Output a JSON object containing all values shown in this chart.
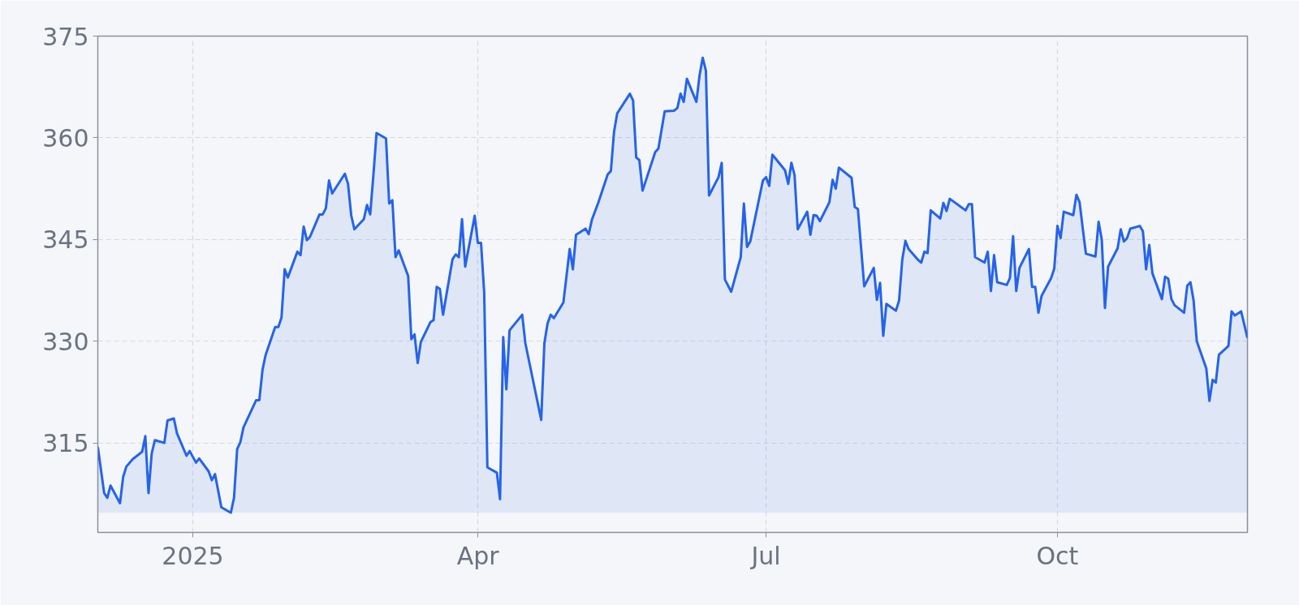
{
  "chart_data": {
    "type": "area",
    "x": [
      "2024-12-02",
      "2024-12-04",
      "2024-12-05",
      "2024-12-06",
      "2024-12-09",
      "2024-12-10",
      "2024-12-11",
      "2024-12-13",
      "2024-12-16",
      "2024-12-17",
      "2024-12-18",
      "2024-12-19",
      "2024-12-20",
      "2024-12-23",
      "2024-12-24",
      "2024-12-26",
      "2024-12-27",
      "2024-12-30",
      "2024-12-31",
      "2025-01-02",
      "2025-01-03",
      "2025-01-06",
      "2025-01-07",
      "2025-01-08",
      "2025-01-10",
      "2025-01-13",
      "2025-01-14",
      "2025-01-15",
      "2025-01-16",
      "2025-01-17",
      "2025-01-21",
      "2025-01-22",
      "2025-01-23",
      "2025-01-24",
      "2025-01-27",
      "2025-01-28",
      "2025-01-29",
      "2025-01-30",
      "2025-01-31",
      "2025-02-03",
      "2025-02-04",
      "2025-02-05",
      "2025-02-06",
      "2025-02-07",
      "2025-02-10",
      "2025-02-11",
      "2025-02-12",
      "2025-02-13",
      "2025-02-14",
      "2025-02-18",
      "2025-02-19",
      "2025-02-20",
      "2025-02-21",
      "2025-02-24",
      "2025-02-25",
      "2025-02-26",
      "2025-02-27",
      "2025-02-28",
      "2025-03-03",
      "2025-03-04",
      "2025-03-05",
      "2025-03-06",
      "2025-03-07",
      "2025-03-10",
      "2025-03-11",
      "2025-03-12",
      "2025-03-13",
      "2025-03-14",
      "2025-03-17",
      "2025-03-18",
      "2025-03-19",
      "2025-03-20",
      "2025-03-21",
      "2025-03-24",
      "2025-03-25",
      "2025-03-26",
      "2025-03-27",
      "2025-03-28",
      "2025-03-31",
      "2025-04-01",
      "2025-04-02",
      "2025-04-03",
      "2025-04-04",
      "2025-04-07",
      "2025-04-08",
      "2025-04-09",
      "2025-04-10",
      "2025-04-11",
      "2025-04-15",
      "2025-04-16",
      "2025-04-21",
      "2025-04-22",
      "2025-04-23",
      "2025-04-24",
      "2025-04-25",
      "2025-04-28",
      "2025-04-30",
      "2025-05-01",
      "2025-05-02",
      "2025-05-05",
      "2025-05-06",
      "2025-05-07",
      "2025-05-09",
      "2025-05-12",
      "2025-05-13",
      "2025-05-14",
      "2025-05-15",
      "2025-05-19",
      "2025-05-20",
      "2025-05-21",
      "2025-05-22",
      "2025-05-23",
      "2025-05-27",
      "2025-05-28",
      "2025-05-30",
      "2025-06-02",
      "2025-06-03",
      "2025-06-04",
      "2025-06-05",
      "2025-06-06",
      "2025-06-09",
      "2025-06-10",
      "2025-06-11",
      "2025-06-12",
      "2025-06-13",
      "2025-06-16",
      "2025-06-17",
      "2025-06-18",
      "2025-06-20",
      "2025-06-23",
      "2025-06-24",
      "2025-06-25",
      "2025-06-26",
      "2025-06-30",
      "2025-07-01",
      "2025-07-02",
      "2025-07-03",
      "2025-07-07",
      "2025-07-08",
      "2025-07-09",
      "2025-07-10",
      "2025-07-11",
      "2025-07-14",
      "2025-07-15",
      "2025-07-16",
      "2025-07-17",
      "2025-07-18",
      "2025-07-21",
      "2025-07-22",
      "2025-07-23",
      "2025-07-24",
      "2025-07-28",
      "2025-07-29",
      "2025-07-30",
      "2025-08-01",
      "2025-08-04",
      "2025-08-05",
      "2025-08-06",
      "2025-08-07",
      "2025-08-08",
      "2025-08-11",
      "2025-08-12",
      "2025-08-13",
      "2025-08-14",
      "2025-08-15",
      "2025-08-18",
      "2025-08-19",
      "2025-08-20",
      "2025-08-21",
      "2025-08-22",
      "2025-08-25",
      "2025-08-26",
      "2025-08-27",
      "2025-08-28",
      "2025-09-02",
      "2025-09-03",
      "2025-09-04",
      "2025-09-05",
      "2025-09-08",
      "2025-09-09",
      "2025-09-10",
      "2025-09-11",
      "2025-09-12",
      "2025-09-15",
      "2025-09-16",
      "2025-09-17",
      "2025-09-18",
      "2025-09-19",
      "2025-09-22",
      "2025-09-23",
      "2025-09-24",
      "2025-09-25",
      "2025-09-26",
      "2025-09-29",
      "2025-09-30",
      "2025-10-01",
      "2025-10-02",
      "2025-10-03",
      "2025-10-06",
      "2025-10-07",
      "2025-10-08",
      "2025-10-09",
      "2025-10-10",
      "2025-10-13",
      "2025-10-14",
      "2025-10-15",
      "2025-10-16",
      "2025-10-17",
      "2025-10-20",
      "2025-10-21",
      "2025-10-22",
      "2025-10-23",
      "2025-10-24",
      "2025-10-27",
      "2025-10-28",
      "2025-10-29",
      "2025-10-30",
      "2025-10-31",
      "2025-11-03",
      "2025-11-04",
      "2025-11-05",
      "2025-11-06",
      "2025-11-07",
      "2025-11-10",
      "2025-11-11",
      "2025-11-12",
      "2025-11-13",
      "2025-11-14",
      "2025-11-17",
      "2025-11-18",
      "2025-11-19",
      "2025-11-20",
      "2025-11-21",
      "2025-11-24",
      "2025-11-25",
      "2025-11-26",
      "2025-11-28",
      "2025-11-30"
    ],
    "series": [
      {
        "color": "#2563eb",
        "values": [
          314.4,
          307.6,
          306.9,
          308.7,
          306.1,
          310.0,
          311.5,
          312.6,
          313.7,
          316.0,
          307.6,
          313.4,
          315.4,
          315.0,
          318.3,
          318.6,
          316.4,
          313.1,
          313.8,
          312.1,
          312.7,
          310.8,
          309.5,
          310.4,
          305.5,
          304.7,
          306.9,
          314.1,
          315.1,
          317.3,
          321.3,
          321.3,
          325.8,
          328.0,
          332.1,
          332.1,
          333.5,
          340.6,
          339.4,
          343.2,
          342.7,
          346.9,
          344.9,
          345.4,
          348.7,
          348.7,
          349.6,
          353.7,
          351.8,
          354.7,
          353.2,
          348.6,
          346.5,
          348.0,
          350.1,
          348.7,
          354.4,
          360.7,
          359.9,
          350.3,
          350.8,
          342.4,
          343.4,
          339.6,
          330.3,
          331.0,
          326.8,
          329.9,
          332.8,
          333.1,
          338.0,
          337.7,
          333.9,
          342.1,
          342.8,
          342.4,
          348.0,
          341.0,
          348.5,
          344.5,
          344.5,
          337.2,
          311.4,
          310.6,
          306.7,
          330.6,
          322.9,
          331.6,
          333.9,
          329.7,
          318.4,
          329.7,
          332.6,
          333.9,
          333.4,
          335.7,
          343.6,
          340.6,
          345.7,
          346.6,
          345.8,
          347.9,
          350.4,
          354.6,
          355.1,
          360.9,
          363.6,
          366.5,
          365.5,
          357.1,
          356.7,
          352.2,
          357.9,
          358.4,
          363.9,
          364.0,
          364.4,
          366.5,
          365.3,
          368.7,
          365.3,
          369.2,
          371.8,
          369.9,
          351.5,
          354.2,
          356.3,
          339.1,
          337.3,
          342.4,
          350.3,
          343.9,
          344.7,
          353.7,
          354.2,
          352.9,
          357.5,
          355.2,
          353.2,
          356.3,
          354.5,
          346.5,
          349.1,
          345.7,
          348.6,
          348.5,
          347.7,
          350.5,
          353.8,
          352.5,
          355.6,
          354.1,
          349.8,
          349.5,
          338.1,
          340.8,
          336.1,
          338.6,
          330.8,
          335.5,
          334.5,
          336.0,
          342.0,
          344.8,
          343.6,
          342.0,
          341.6,
          343.2,
          343.0,
          349.3,
          348.1,
          350.4,
          349.2,
          351.0,
          349.3,
          350.2,
          350.2,
          342.4,
          341.6,
          343.2,
          337.4,
          342.7,
          338.7,
          338.3,
          339.3,
          345.5,
          337.4,
          340.8,
          343.6,
          338.0,
          338.0,
          334.2,
          336.7,
          339.3,
          340.7,
          347.0,
          345.2,
          349.1,
          348.6,
          351.6,
          350.5,
          346.6,
          342.9,
          342.5,
          347.6,
          345.0,
          334.9,
          341.0,
          343.7,
          346.5,
          344.7,
          345.2,
          346.6,
          347.0,
          346.2,
          340.6,
          344.2,
          340.0,
          336.2,
          339.5,
          339.2,
          336.2,
          335.3,
          334.2,
          338.2,
          338.7,
          336.0,
          330.0,
          326.0,
          321.2,
          324.3,
          323.9,
          328.0,
          329.3,
          334.4,
          333.8,
          334.4,
          330.5
        ]
      }
    ],
    "xlim": [
      "2024-12-02",
      "2025-11-30"
    ],
    "xticks": [
      {
        "value": "2025-01-01",
        "label": "2025"
      },
      {
        "value": "2025-04-01",
        "label": "Apr"
      },
      {
        "value": "2025-07-01",
        "label": "Jul"
      },
      {
        "value": "2025-10-01",
        "label": "Oct"
      }
    ],
    "ylim": [
      301.8,
      375
    ],
    "yticks": [
      315,
      330,
      345,
      360,
      375
    ],
    "grid": true,
    "line_style": "solid"
  }
}
